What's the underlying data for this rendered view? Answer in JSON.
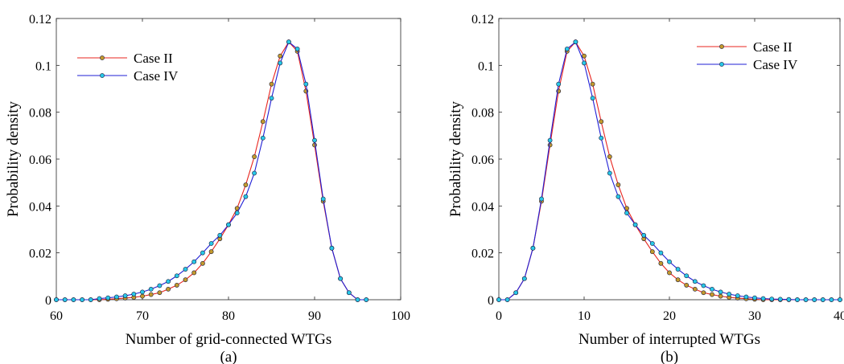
{
  "chart_data": [
    {
      "type": "line",
      "panel_label": "(a)",
      "xlabel": "Number of grid-connected WTGs",
      "ylabel": "Probability density",
      "xlim": [
        60,
        100
      ],
      "ylim": [
        0,
        0.12
      ],
      "xticks": [
        60,
        70,
        80,
        90,
        100
      ],
      "yticks": [
        0,
        0.02,
        0.04,
        0.06,
        0.08,
        0.1,
        0.12
      ],
      "xtick_labels": [
        "60",
        "70",
        "80",
        "90",
        "100"
      ],
      "ytick_labels": [
        "0",
        "0.02",
        "0.04",
        "0.06",
        "0.08",
        "0.1",
        "0.12"
      ],
      "grid": false,
      "legend_position": "top-left",
      "x": [
        60,
        61,
        62,
        63,
        64,
        65,
        66,
        67,
        68,
        69,
        70,
        71,
        72,
        73,
        74,
        75,
        76,
        77,
        78,
        79,
        80,
        81,
        82,
        83,
        84,
        85,
        86,
        87,
        88,
        89,
        90,
        91,
        92,
        93,
        94,
        95,
        96
      ],
      "series": [
        {
          "name": "Case II",
          "line_color": "#e8251f",
          "marker_color": "#c49a2c",
          "values": [
            0,
            0,
            0,
            0,
            0,
            0,
            0.0002,
            0.0004,
            0.0007,
            0.001,
            0.0015,
            0.0022,
            0.003,
            0.0045,
            0.0062,
            0.0085,
            0.0115,
            0.0155,
            0.0205,
            0.026,
            0.032,
            0.039,
            0.049,
            0.061,
            0.076,
            0.092,
            0.104,
            0.11,
            0.106,
            0.089,
            0.066,
            0.042,
            0.022,
            0.009,
            0.003,
            0,
            0
          ]
        },
        {
          "name": "Case IV",
          "line_color": "#1f1fd6",
          "marker_color": "#28c8e8",
          "values": [
            0,
            0,
            0,
            0,
            0,
            0.0005,
            0.0008,
            0.0012,
            0.0017,
            0.0024,
            0.0033,
            0.0045,
            0.006,
            0.0078,
            0.0102,
            0.013,
            0.0162,
            0.02,
            0.024,
            0.0275,
            0.032,
            0.037,
            0.044,
            0.054,
            0.069,
            0.086,
            0.101,
            0.11,
            0.107,
            0.092,
            0.068,
            0.043,
            0.022,
            0.009,
            0.003,
            0,
            0
          ]
        }
      ]
    },
    {
      "type": "line",
      "panel_label": "(b)",
      "xlabel": "Number of interrupted WTGs",
      "ylabel": "Probability density",
      "xlim": [
        0,
        40
      ],
      "ylim": [
        0,
        0.12
      ],
      "xticks": [
        0,
        10,
        20,
        30,
        40
      ],
      "yticks": [
        0,
        0.02,
        0.04,
        0.06,
        0.08,
        0.1,
        0.12
      ],
      "xtick_labels": [
        "0",
        "10",
        "20",
        "30",
        "40"
      ],
      "ytick_labels": [
        "0",
        "0.02",
        "0.04",
        "0.06",
        "0.08",
        "0.1",
        "0.12"
      ],
      "grid": false,
      "legend_position": "top-right",
      "x": [
        0,
        1,
        2,
        3,
        4,
        5,
        6,
        7,
        8,
        9,
        10,
        11,
        12,
        13,
        14,
        15,
        16,
        17,
        18,
        19,
        20,
        21,
        22,
        23,
        24,
        25,
        26,
        27,
        28,
        29,
        30,
        31,
        32,
        33,
        34,
        35,
        36,
        37,
        38,
        39,
        40
      ],
      "series": [
        {
          "name": "Case II",
          "line_color": "#e8251f",
          "marker_color": "#c49a2c",
          "values": [
            0,
            0,
            0.003,
            0.009,
            0.022,
            0.042,
            0.066,
            0.089,
            0.106,
            0.11,
            0.104,
            0.092,
            0.076,
            0.061,
            0.049,
            0.039,
            0.032,
            0.026,
            0.0205,
            0.0155,
            0.0115,
            0.0085,
            0.0062,
            0.0045,
            0.003,
            0.0022,
            0.0015,
            0.001,
            0.0007,
            0.0004,
            0.0002,
            0,
            0,
            0,
            0,
            0,
            0,
            0,
            0,
            0,
            0
          ]
        },
        {
          "name": "Case IV",
          "line_color": "#1f1fd6",
          "marker_color": "#28c8e8",
          "values": [
            0,
            0,
            0.003,
            0.009,
            0.022,
            0.043,
            0.068,
            0.092,
            0.107,
            0.11,
            0.101,
            0.086,
            0.069,
            0.054,
            0.044,
            0.037,
            0.032,
            0.0275,
            0.024,
            0.02,
            0.0162,
            0.013,
            0.0102,
            0.0078,
            0.006,
            0.0045,
            0.0033,
            0.0024,
            0.0017,
            0.0012,
            0.0008,
            0.0005,
            0.0003,
            0.0002,
            0.0001,
            0,
            0,
            0,
            0,
            0,
            0
          ]
        }
      ]
    }
  ]
}
